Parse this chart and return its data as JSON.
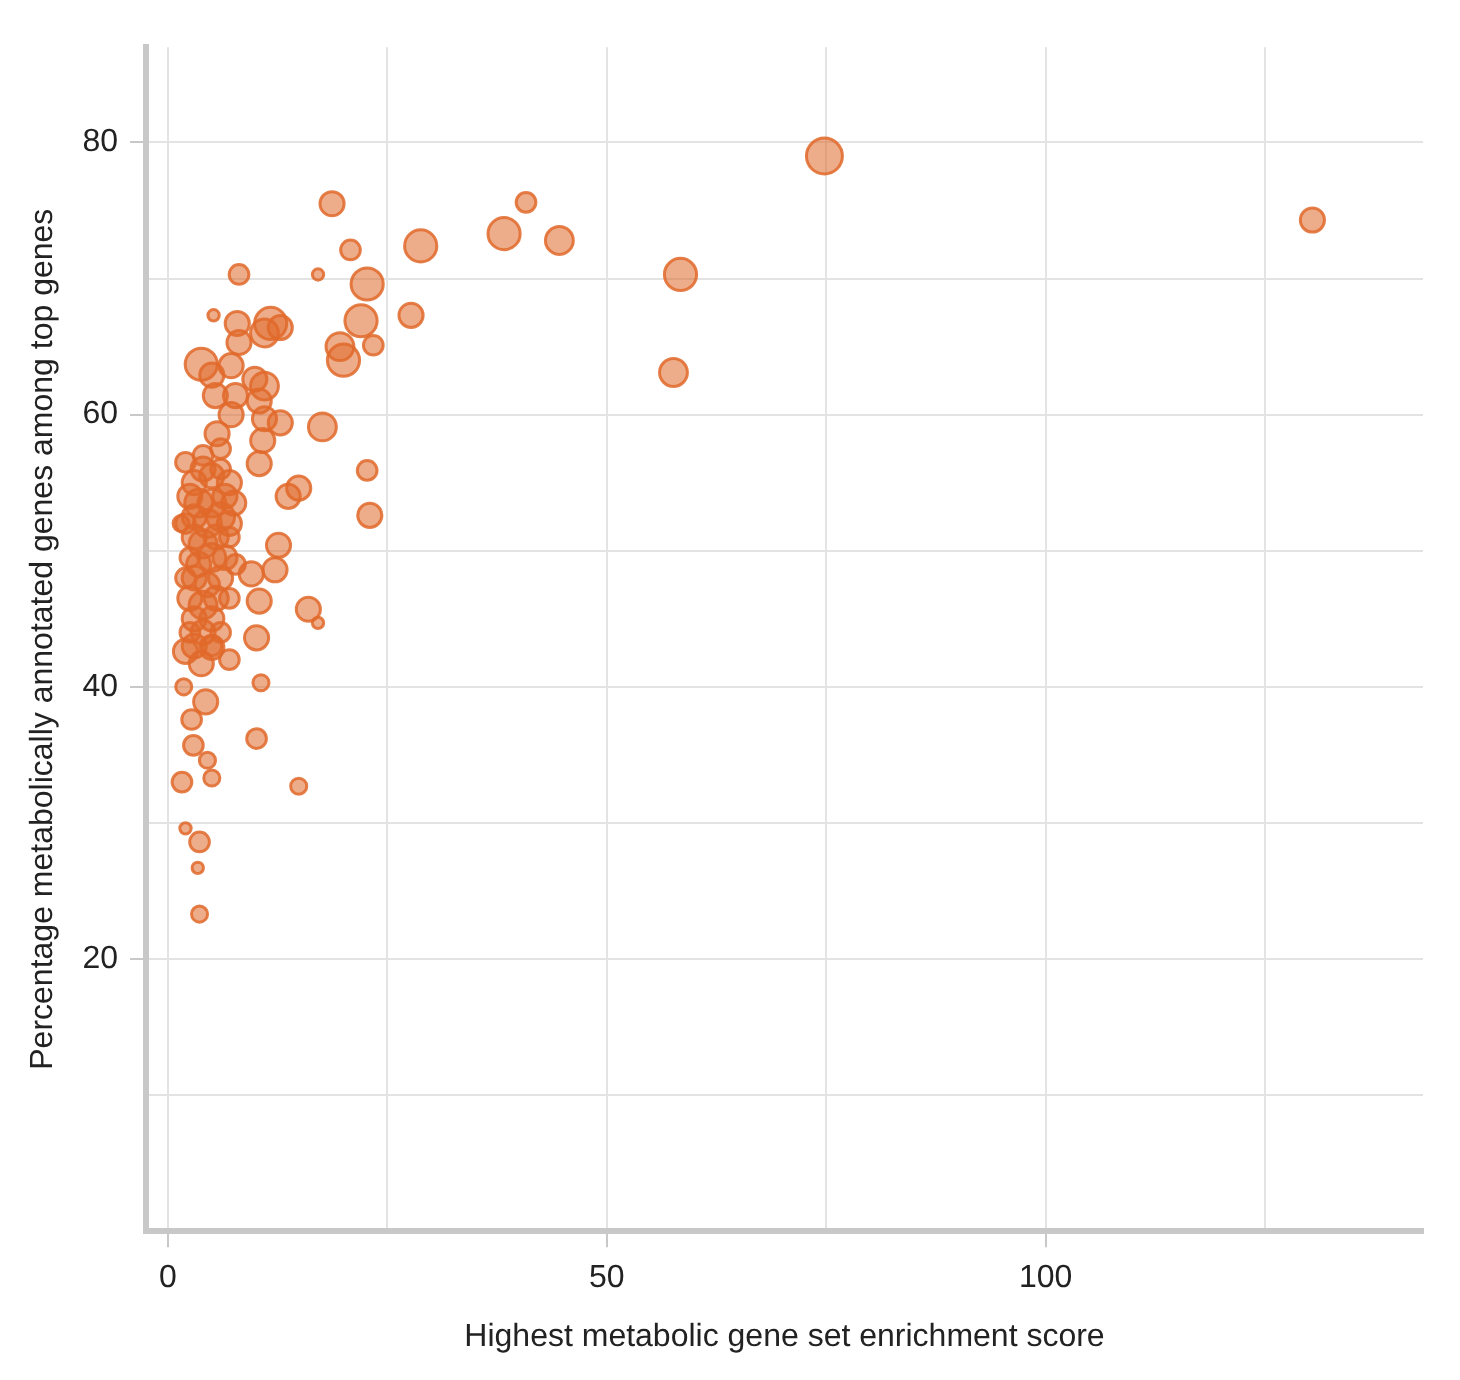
{
  "chart_data": {
    "type": "bubble",
    "xlabel": "Highest metabolic gene set enrichment score",
    "ylabel": "Percentage metabolically annotated genes among top genes",
    "color": "#e0692a",
    "grid": true,
    "marker": "circle",
    "xlim": [
      -2.5,
      143
    ],
    "ylim": [
      0,
      87
    ],
    "xticks": [
      0,
      {
        "value": 25,
        "label": null
      },
      50,
      {
        "value": 75,
        "label": null
      },
      100,
      {
        "value": 125,
        "label": null
      }
    ],
    "yticks": [
      {
        "value": 10,
        "label": null
      },
      20,
      {
        "value": 30,
        "label": null
      },
      40,
      {
        "value": 50,
        "label": null
      },
      60,
      {
        "value": 70,
        "label": null
      },
      80
    ],
    "x": [
      74.8,
      130.4,
      40.8,
      38.3,
      44.6,
      28.8,
      58.4,
      57.6,
      22.7,
      27.7,
      22.0,
      23.4,
      20.8,
      18.7,
      8.1,
      17.1,
      5.2,
      7.9,
      11.7,
      12.8,
      8.1,
      11,
      19.6,
      20,
      3.8,
      5,
      7.2,
      9.9,
      11,
      5.4,
      7.7,
      10.4,
      7.2,
      11,
      12.8,
      17.6,
      5.6,
      10.8,
      10.4,
      22.7,
      14.9,
      13.7,
      23,
      12.6,
      12.2,
      9.5,
      7.7,
      10.4,
      16,
      17.1,
      10.1,
      10.6,
      1.8,
      4.3,
      2.7,
      10.1,
      2.9,
      4.5,
      5,
      1.6,
      14.9,
      2,
      3.6,
      3.4,
      3.6,
      2,
      3,
      4,
      5,
      6,
      7,
      2.5,
      3.5,
      5,
      6.5,
      7.5,
      2,
      3,
      4.5,
      6,
      7,
      3,
      4,
      5.5,
      7,
      2.5,
      3.5,
      5,
      6.5,
      3,
      4.5,
      6,
      2.5,
      4,
      5.5,
      7,
      3,
      5,
      2.5,
      4,
      6,
      3,
      5,
      7,
      2,
      5,
      3.8,
      6,
      4,
      2,
      1.5
    ],
    "values": [
      79.0,
      74.3,
      75.6,
      73.3,
      72.8,
      72.4,
      70.3,
      63.1,
      69.6,
      67.3,
      66.9,
      65.1,
      72.1,
      75.5,
      70.3,
      70.3,
      67.3,
      66.7,
      66.7,
      66.4,
      65.3,
      66,
      65,
      64,
      63.7,
      62.9,
      63.6,
      62.6,
      62.1,
      61.4,
      61.4,
      61,
      60,
      59.7,
      59.4,
      59.1,
      58.6,
      58.1,
      56.4,
      55.9,
      54.6,
      54,
      52.6,
      50.4,
      48.6,
      48.3,
      49,
      46.3,
      45.7,
      44.7,
      43.6,
      40.3,
      40,
      38.9,
      37.6,
      36.2,
      35.7,
      34.6,
      33.3,
      33,
      32.7,
      29.6,
      28.6,
      26.7,
      23.3,
      56.5,
      55,
      56,
      55.5,
      56,
      55,
      54,
      53.5,
      53.5,
      54,
      53.5,
      52,
      52.5,
      52,
      52.5,
      52,
      51,
      50.5,
      51,
      51,
      49.5,
      49,
      49.5,
      49.5,
      48,
      47.5,
      48,
      46.5,
      46,
      46.5,
      46.5,
      45,
      45,
      44,
      44,
      44,
      43,
      43,
      42,
      42.6,
      42.9,
      41.7,
      57.5,
      57,
      48,
      52
    ],
    "sizes": [
      1,
      0.45,
      0.3,
      0.8,
      0.6,
      0.8,
      0.8,
      0.6,
      0.8,
      0.45,
      0.8,
      0.3,
      0.3,
      0.45,
      0.3,
      0.1,
      0.1,
      0.45,
      0.8,
      0.45,
      0.45,
      0.6,
      0.6,
      0.8,
      0.8,
      0.45,
      0.45,
      0.45,
      0.6,
      0.45,
      0.45,
      0.45,
      0.45,
      0.45,
      0.45,
      0.6,
      0.45,
      0.45,
      0.45,
      0.3,
      0.45,
      0.45,
      0.45,
      0.45,
      0.45,
      0.45,
      0.3,
      0.45,
      0.45,
      0.1,
      0.45,
      0.2,
      0.2,
      0.45,
      0.3,
      0.3,
      0.3,
      0.2,
      0.2,
      0.3,
      0.2,
      0.1,
      0.3,
      0.1,
      0.2,
      0.3,
      0.45,
      0.45,
      0.45,
      0.3,
      0.45,
      0.45,
      0.6,
      0.6,
      0.45,
      0.45,
      0.3,
      0.45,
      0.6,
      0.6,
      0.45,
      0.45,
      0.6,
      0.45,
      0.3,
      0.3,
      0.45,
      0.6,
      0.45,
      0.45,
      0.45,
      0.45,
      0.45,
      0.6,
      0.45,
      0.3,
      0.45,
      0.45,
      0.3,
      0.45,
      0.3,
      0.45,
      0.3,
      0.3,
      0.45,
      0.45,
      0.45,
      0.3,
      0.3,
      0.3,
      0.2
    ]
  }
}
